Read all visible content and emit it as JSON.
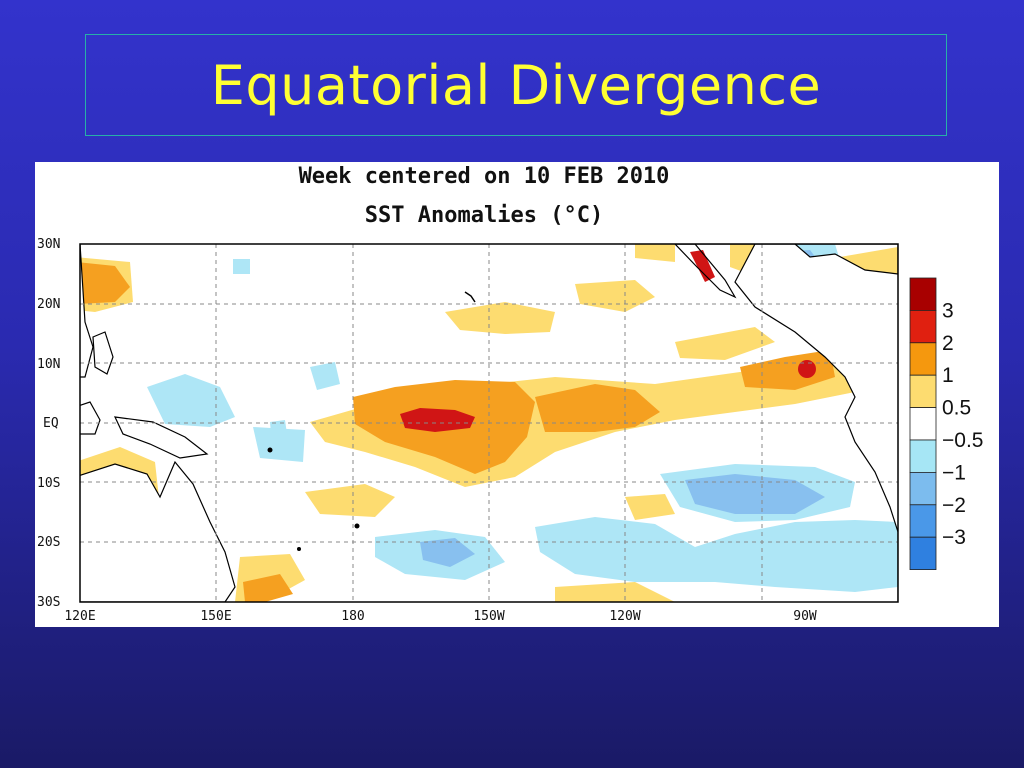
{
  "slide": {
    "title": "Equatorial Divergence"
  },
  "map": {
    "header_line1": "Week centered on 10 FEB 2010",
    "header_line2": "SST Anomalies (°C)",
    "lat_ticks": [
      "30N",
      "20N",
      "10N",
      "EQ",
      "10S",
      "20S",
      "30S"
    ],
    "lon_ticks": [
      "120E",
      "150E",
      "180",
      "150W",
      "120W",
      "90W"
    ],
    "colorbar": {
      "labels": [
        "3",
        "2",
        "1",
        "0.5",
        "−0.5",
        "−1",
        "−2",
        "−3"
      ],
      "colors": [
        "#a80000",
        "#e02010",
        "#f5980e",
        "#fddc70",
        "#ffffff",
        "#a6e6f5",
        "#7cbcee",
        "#4a98e8",
        "#2f80e0"
      ]
    },
    "anomaly_colors": {
      "warm_strong": "#d01515",
      "warm": "#f5a020",
      "warm_weak": "#fddc70",
      "cool_weak": "#aee6f6",
      "cool": "#88c0ef",
      "land": "#ffffff",
      "coast": "#000000"
    }
  }
}
